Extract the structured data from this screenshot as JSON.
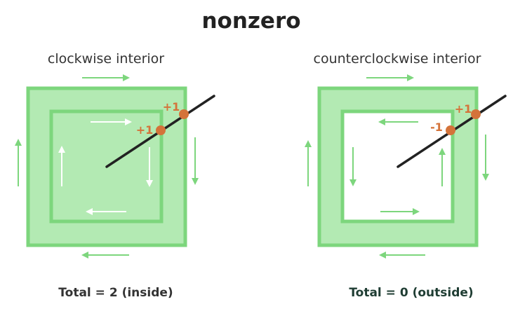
{
  "title": "nonzero",
  "colors": {
    "outer_fill": "#b3eab3",
    "stroke_green": "#7dd67d",
    "arrow_white": "#ffffff",
    "ray": "#222222",
    "dot": "#d4733a",
    "count_text": "#d4733a",
    "total_left": "#333333",
    "total_right": "#1f3d33"
  },
  "panels": {
    "left": {
      "label": "clockwise interior",
      "inner_fill": "#b3eab3",
      "crossings": [
        "+1",
        "+1"
      ],
      "total": "Total = 2 (inside)"
    },
    "right": {
      "label": "counterclockwise interior",
      "inner_fill": "#ffffff",
      "crossings": [
        "+1",
        "-1"
      ],
      "total": "Total = 0 (outside)"
    }
  }
}
